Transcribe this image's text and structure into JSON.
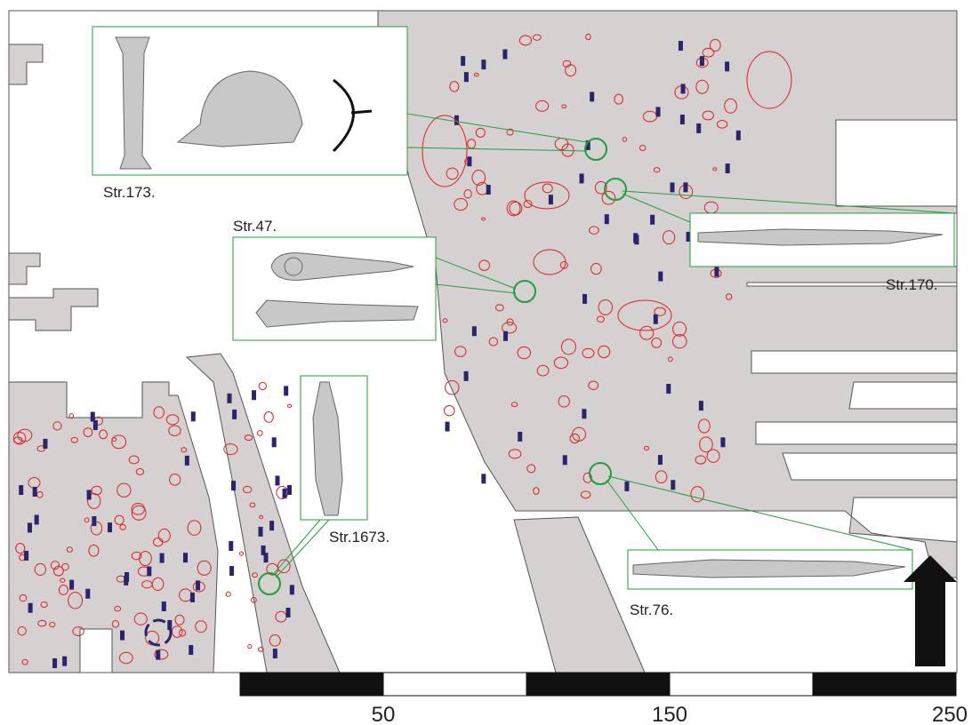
{
  "insets": [
    {
      "label": "Str.173."
    },
    {
      "label": "Str.47."
    },
    {
      "label": "Str.170."
    },
    {
      "label": "Str.1673."
    },
    {
      "label": "Str.76."
    }
  ],
  "scale_bar": {
    "labels": [
      50,
      150,
      250
    ]
  }
}
